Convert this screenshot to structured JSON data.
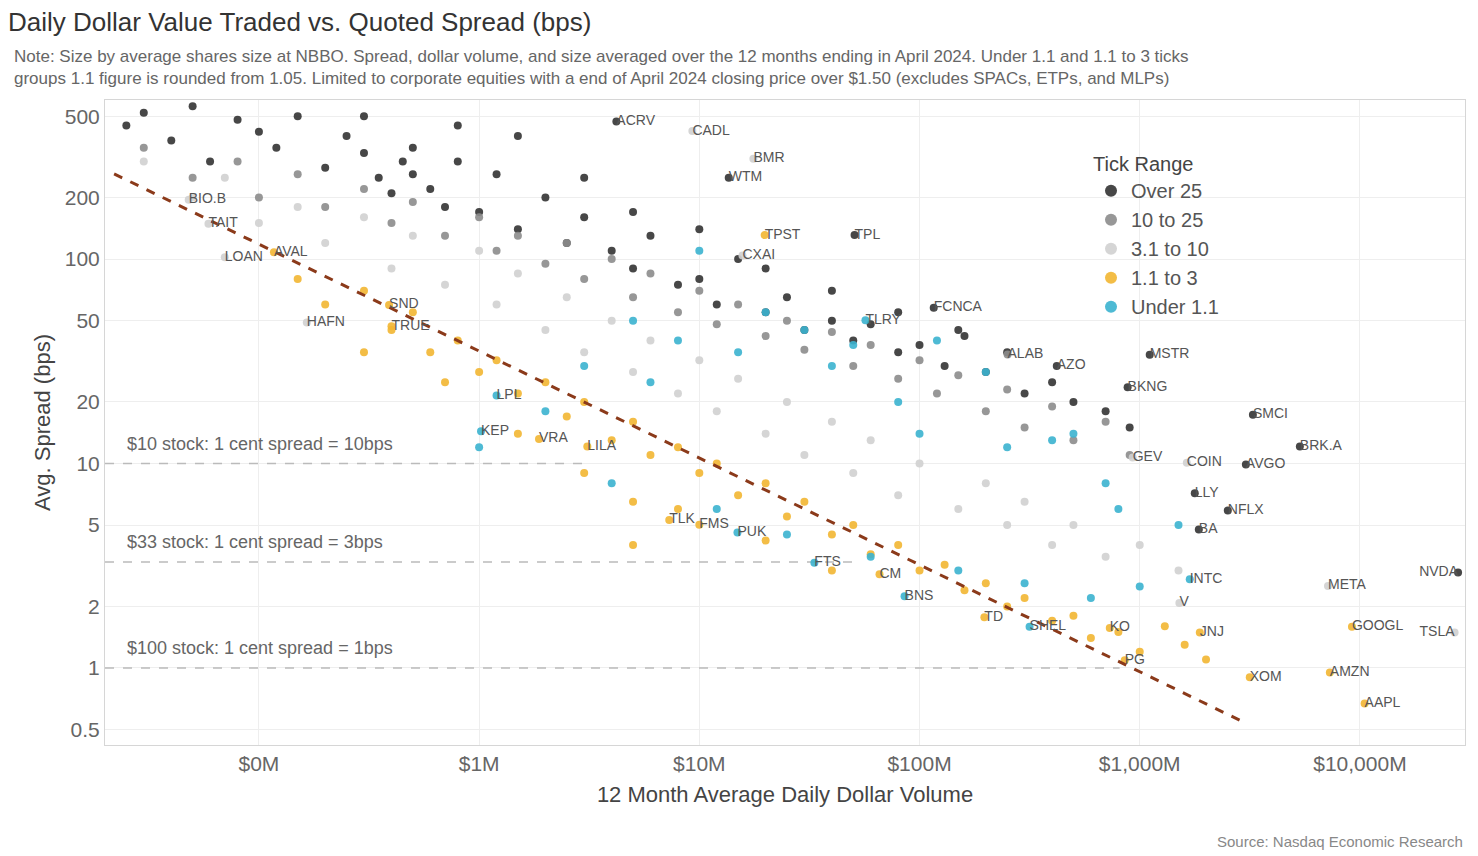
{
  "chart_data": {
    "type": "scatter",
    "title": "Daily Dollar Value Traded vs. Quoted Spread (bps)",
    "subtitle": [
      "Note: Size by average shares size at NBBO. Spread, dollar volume, and size averaged over the 12 months ending in April 2024. Under 1.1 and 1.1 to 3 ticks",
      "groups 1.1 figure is rounded from 1.05. Limited to corporate equities with a end of April 2024 closing price over $1.50 (excludes SPACs, ETPs, and MLPs)"
    ],
    "source": "Source: Nasdaq Economic Research",
    "x_label": "12 Month Average Daily Dollar Volume",
    "y_label": "Avg. Spread (bps)",
    "legend_title": "Tick Range",
    "log": true,
    "grid": true,
    "legend": "top right",
    "xlim": [
      0.02,
      30000
    ],
    "xticks": [
      {
        "value": 0.1,
        "label": "$0M"
      },
      {
        "value": 1,
        "label": "$1M"
      },
      {
        "value": 10,
        "label": "$10M"
      },
      {
        "value": 100,
        "label": "$100M"
      },
      {
        "value": 1000,
        "label": "$1,000M"
      },
      {
        "value": 10000,
        "label": "$10,000M"
      }
    ],
    "ylim": [
      0.42,
      600
    ],
    "yticks": [
      0.5,
      1,
      2,
      5,
      10,
      20,
      50,
      100,
      200,
      500
    ],
    "series": [
      {
        "name": "Over 25",
        "color": "#333333",
        "labels": [
          "WTM",
          "TPL",
          "FCNCA",
          "AZO",
          "MSTR",
          "BKNG",
          "SMCI",
          "BRK.A",
          "AVGO",
          "LLY",
          "NFLX",
          "BA",
          "NVDA",
          "ACRV",
          null,
          null,
          null,
          null,
          null,
          null,
          null,
          null,
          null,
          null,
          null,
          null,
          null,
          null,
          null,
          null,
          null,
          null,
          null,
          null,
          null,
          null,
          null,
          null,
          null,
          null,
          null,
          null,
          null,
          null,
          null,
          null,
          null,
          null,
          null,
          null,
          null,
          null,
          null,
          null,
          null,
          null,
          null,
          null,
          null,
          null,
          null,
          null,
          null,
          null,
          null,
          null,
          null,
          null,
          null,
          null,
          null,
          null,
          null,
          null
        ],
        "x": [
          13.6,
          50.7,
          116,
          420,
          1110,
          881,
          3265,
          5335,
          3034,
          1778,
          2512,
          1855,
          27900,
          4.2,
          0.025,
          0.03,
          0.04,
          0.05,
          0.06,
          0.08,
          0.1,
          0.12,
          0.15,
          0.2,
          0.25,
          0.3,
          0.35,
          0.4,
          0.45,
          0.5,
          0.6,
          0.7,
          0.8,
          1,
          1.2,
          1.5,
          2,
          2.5,
          3,
          4,
          5,
          6,
          8,
          10,
          12,
          15,
          20,
          25,
          30,
          40,
          50,
          60,
          80,
          100,
          130,
          160,
          200,
          250,
          300,
          400,
          500,
          700,
          900,
          0.3,
          0.5,
          0.8,
          1.5,
          3,
          5,
          10,
          20,
          40,
          80,
          150
        ],
        "y": [
          250,
          131,
          57.8,
          30,
          34,
          23.6,
          17.3,
          12.1,
          9.9,
          7.16,
          5.9,
          4.76,
          2.93,
          471,
          450,
          520,
          380,
          560,
          300,
          480,
          420,
          350,
          500,
          280,
          400,
          330,
          250,
          210,
          300,
          260,
          220,
          180,
          300,
          170,
          260,
          140,
          200,
          120,
          160,
          110,
          90,
          130,
          75,
          80,
          60,
          100,
          55,
          65,
          45,
          50,
          40,
          48,
          35,
          38,
          30,
          42,
          28,
          35,
          22,
          25,
          20,
          18,
          15,
          500,
          350,
          450,
          400,
          250,
          170,
          140,
          90,
          70,
          55,
          45
        ]
      },
      {
        "name": "10 to 25",
        "color": "#8c8c8c",
        "labels": [
          "ALAB",
          null,
          null,
          null,
          null,
          null,
          null,
          null,
          null,
          null,
          null,
          null,
          null,
          null,
          null,
          null,
          null,
          null,
          null,
          null,
          null,
          null,
          null,
          null,
          null,
          null,
          null,
          null,
          null,
          null,
          null,
          null,
          null,
          null,
          null,
          null,
          null,
          null,
          null,
          null,
          null
        ],
        "x": [
          251,
          0.03,
          0.05,
          0.08,
          0.1,
          0.15,
          0.2,
          0.3,
          0.4,
          0.5,
          0.7,
          1,
          1.2,
          1.5,
          2,
          2.5,
          3,
          4,
          5,
          6,
          8,
          10,
          12,
          15,
          20,
          25,
          30,
          40,
          50,
          60,
          80,
          100,
          120,
          150,
          200,
          250,
          300,
          400,
          500,
          700,
          900
        ],
        "y": [
          34.1,
          350,
          250,
          300,
          200,
          260,
          180,
          220,
          150,
          190,
          130,
          160,
          110,
          130,
          95,
          120,
          80,
          100,
          65,
          85,
          55,
          70,
          48,
          60,
          42,
          50,
          36,
          44,
          30,
          38,
          26,
          32,
          22,
          27,
          18,
          23,
          15,
          19,
          13,
          16,
          11
        ]
      },
      {
        "name": "3.1 to 10",
        "color": "#d0d0d0",
        "labels": [
          "CADL",
          "BMR",
          "CXAI",
          "COIN",
          "GEV",
          "V",
          "META",
          "TSLA",
          "HAFN",
          "LOAN",
          "TAIT",
          "BIO.B",
          null,
          null,
          null,
          null,
          null,
          null,
          null,
          null,
          null,
          null,
          null,
          null,
          null,
          null,
          null,
          null,
          null,
          null,
          null,
          null,
          null,
          null,
          null,
          null,
          null,
          null,
          null,
          null,
          null,
          null,
          null,
          null,
          null,
          null,
          null,
          null,
          null,
          null,
          null,
          null
        ],
        "x": [
          9.3,
          17.6,
          15.7,
          1636,
          929,
          1514,
          7160,
          26900,
          0.165,
          0.07,
          0.059,
          0.048,
          0.03,
          0.05,
          0.07,
          0.1,
          0.15,
          0.2,
          0.3,
          0.4,
          0.5,
          0.7,
          1,
          1.2,
          1.5,
          2,
          2.5,
          3,
          4,
          5,
          6,
          8,
          10,
          12,
          15,
          20,
          25,
          30,
          40,
          50,
          60,
          80,
          100,
          150,
          200,
          250,
          300,
          400,
          500,
          700,
          1000,
          1500
        ],
        "y": [
          423,
          310,
          104,
          10.1,
          10.7,
          2.08,
          2.52,
          1.49,
          49,
          102,
          149,
          195,
          300,
          200,
          250,
          150,
          180,
          120,
          160,
          90,
          130,
          75,
          110,
          60,
          85,
          45,
          65,
          35,
          50,
          28,
          40,
          22,
          32,
          18,
          26,
          14,
          20,
          11,
          16,
          9,
          13,
          7,
          10,
          6,
          8,
          5,
          6.5,
          4,
          5,
          3.5,
          4,
          3
        ]
      },
      {
        "name": "1.1 to 3",
        "color": "#f2b632",
        "labels": [
          "TPST",
          "JNJ",
          "GOOGL",
          "AAPL",
          "AMZN",
          "XOM",
          "PG",
          "KO",
          "TD",
          "CM",
          "FMS",
          "TLK",
          "VRA",
          "LILA",
          "TRUE",
          "SND",
          "AVAL",
          null,
          null,
          null,
          null,
          null,
          null,
          null,
          null,
          null,
          null,
          null,
          null,
          null,
          null,
          null,
          null,
          null,
          null,
          null,
          null,
          null,
          null,
          null,
          null,
          null,
          null,
          null,
          null,
          null,
          null,
          null,
          null,
          null,
          null,
          null,
          null,
          null,
          null,
          null,
          null,
          null,
          null,
          null,
          null,
          null,
          null,
          null,
          null,
          null,
          null
        ],
        "x": [
          19.8,
          1874,
          9200,
          10500,
          7300,
          3160,
          855,
          731,
          197,
          65.8,
          10,
          7.3,
          1.87,
          3.1,
          0.4,
          0.39,
          0.117,
          0.15,
          0.2,
          0.3,
          0.4,
          0.5,
          0.6,
          0.8,
          1,
          1.2,
          1.5,
          2,
          2.5,
          3,
          4,
          5,
          6,
          8,
          10,
          12,
          15,
          20,
          25,
          30,
          40,
          50,
          60,
          80,
          100,
          130,
          160,
          200,
          250,
          300,
          400,
          500,
          600,
          800,
          1000,
          1300,
          1600,
          2000,
          1.5,
          3,
          5,
          8,
          20,
          40,
          5,
          0.3,
          0.7
        ],
        "y": [
          131,
          1.49,
          1.59,
          0.67,
          0.95,
          0.9,
          1.09,
          1.57,
          1.77,
          2.87,
          5.02,
          5.3,
          13.2,
          12.1,
          47,
          59.7,
          108,
          80,
          60,
          70,
          45,
          55,
          35,
          40,
          28,
          32,
          22,
          25,
          17,
          20,
          13,
          16,
          11,
          12,
          9,
          10,
          7,
          8,
          5.5,
          6.5,
          4.5,
          5,
          3.6,
          4,
          3,
          3.2,
          2.4,
          2.6,
          2,
          2.2,
          1.7,
          1.8,
          1.4,
          1.5,
          1.2,
          1.6,
          1.3,
          1.1,
          14,
          9,
          6.5,
          6,
          4.2,
          3,
          4,
          35,
          25
        ]
      },
      {
        "name": "Under 1.1",
        "color": "#3bb3cf",
        "labels": [
          "TLRY",
          "INTC",
          "SHEL",
          "BNS",
          "FTS",
          "PUK",
          "KEP",
          "LPL",
          null,
          null,
          null,
          null,
          null,
          null,
          null,
          null,
          null,
          null,
          null,
          null,
          null,
          null,
          null,
          null,
          null,
          null,
          null,
          null,
          null,
          null,
          null,
          null,
          null,
          null,
          null,
          null,
          null,
          null
        ],
        "x": [
          56.8,
          1687,
          316,
          85.5,
          33.3,
          14.9,
          1.02,
          1.2,
          1,
          2,
          3,
          4,
          5,
          6,
          8,
          10,
          12,
          15,
          20,
          25,
          30,
          40,
          50,
          60,
          80,
          100,
          120,
          150,
          200,
          250,
          300,
          400,
          500,
          600,
          700,
          800,
          1000,
          1500
        ],
        "y": [
          50.2,
          2.72,
          1.59,
          2.24,
          3.27,
          4.6,
          14.4,
          21.5,
          12,
          18,
          30,
          8,
          50,
          25,
          40,
          110,
          6,
          35,
          55,
          4.5,
          45,
          30,
          38,
          3.5,
          20,
          14,
          40,
          3,
          28,
          12,
          2.6,
          13,
          14,
          2.2,
          8,
          6,
          2.5,
          5
        ]
      }
    ],
    "trend_line": {
      "x": [
        0.022,
        3000
      ],
      "y": [
        261,
        0.54
      ],
      "color": "#8b3a1a",
      "line_style": "dashed"
    },
    "reference_lines": [
      {
        "y": 10,
        "x_end": 3.2,
        "label": "$10 stock: 1 cent spread = 10bps",
        "color": "#bbbbbb",
        "line_style": "dashed"
      },
      {
        "y": 3.3,
        "x_end": 53,
        "label": "$33 stock: 1 cent spread = 3bps",
        "color": "#bbbbbb",
        "line_style": "dashed"
      },
      {
        "y": 1,
        "x_end": 810,
        "label": "$100 stock: 1 cent spread = 1bps",
        "color": "#bbbbbb",
        "line_style": "dashed"
      }
    ]
  }
}
